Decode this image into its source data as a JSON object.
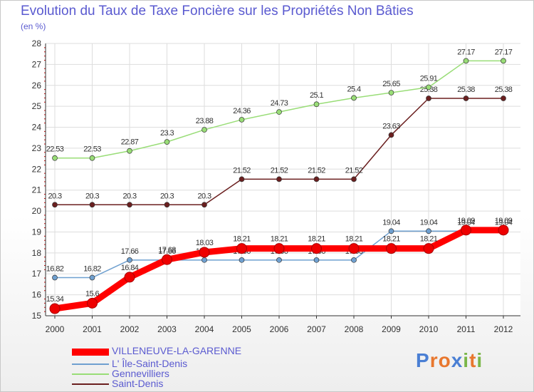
{
  "title": "Evolution du Taux de Taxe Foncière sur les Propriétés Non Bâties",
  "unit": "(en %)",
  "logo": "Proxiti",
  "chart_data": {
    "type": "line",
    "title": "Evolution du Taux de Taxe Foncière sur les Propriétés Non Bâties",
    "ylabel": "(en %)",
    "xlabel": "",
    "x": [
      "2000",
      "2001",
      "2002",
      "2003",
      "2004",
      "2005",
      "2006",
      "2007",
      "2008",
      "2009",
      "2010",
      "2011",
      "2012"
    ],
    "ylim": [
      15,
      28
    ],
    "yticks": [
      15,
      16,
      17,
      18,
      19,
      20,
      21,
      22,
      23,
      24,
      25,
      26,
      27,
      28
    ],
    "grid": true,
    "legend": "bottom-left",
    "series": [
      {
        "name": "Saint-Denis",
        "color": "#6b1f1f",
        "values": [
          20.3,
          20.3,
          20.3,
          20.3,
          20.3,
          21.52,
          21.52,
          21.52,
          21.52,
          23.63,
          25.38,
          25.38,
          25.38
        ],
        "labels": [
          "20.3",
          "20.3",
          "20.3",
          "20.3",
          "20.3",
          "21.52",
          "21.52",
          "21.52",
          "21.52",
          "23.63",
          "25.38",
          "25.38",
          "25.38"
        ]
      },
      {
        "name": "Gennevilliers",
        "color": "#99dd77",
        "values": [
          22.53,
          22.53,
          22.87,
          23.3,
          23.88,
          24.36,
          24.73,
          25.1,
          25.4,
          25.65,
          25.91,
          27.17,
          27.17
        ],
        "labels": [
          "22.53",
          "22.53",
          "22.87",
          "23.3",
          "23.88",
          "24.36",
          "24.73",
          "25.1",
          "25.4",
          "25.65",
          "25.91",
          "27.17",
          "27.17"
        ]
      },
      {
        "name": "L' Île-Saint-Denis",
        "color": "#6fa0d0",
        "values": [
          16.82,
          16.82,
          17.66,
          17.66,
          17.66,
          17.66,
          17.66,
          17.66,
          17.66,
          19.04,
          19.04,
          19.04,
          19.04
        ],
        "labels": [
          "16.82",
          "16.82",
          "17.66",
          "17.66",
          "17.66",
          "17.66",
          "17.66",
          "17.66",
          "17.66",
          "19.04",
          "19.04",
          "19.04",
          "19.04"
        ]
      },
      {
        "name": "VILLENEUVE-LA-GARENNE",
        "color": "#ff0000",
        "values": [
          15.34,
          15.6,
          16.84,
          17.68,
          18.03,
          18.21,
          18.21,
          18.21,
          18.21,
          18.21,
          18.21,
          19.09,
          19.09
        ],
        "labels": [
          "15.34",
          "15.6",
          "16.84",
          "17.68",
          "18.03",
          "18.21",
          "18.21",
          "18.21",
          "18.21",
          "18.21",
          "18.21",
          "19.09",
          "19.09"
        ]
      }
    ]
  },
  "legend": [
    {
      "name": "VILLENEUVE-LA-GARENNE",
      "color": "#ff0000"
    },
    {
      "name": "L' Île-Saint-Denis",
      "color": "#6fa0d0"
    },
    {
      "name": "Gennevilliers",
      "color": "#99dd77"
    },
    {
      "name": "Saint-Denis",
      "color": "#6b1f1f"
    }
  ]
}
